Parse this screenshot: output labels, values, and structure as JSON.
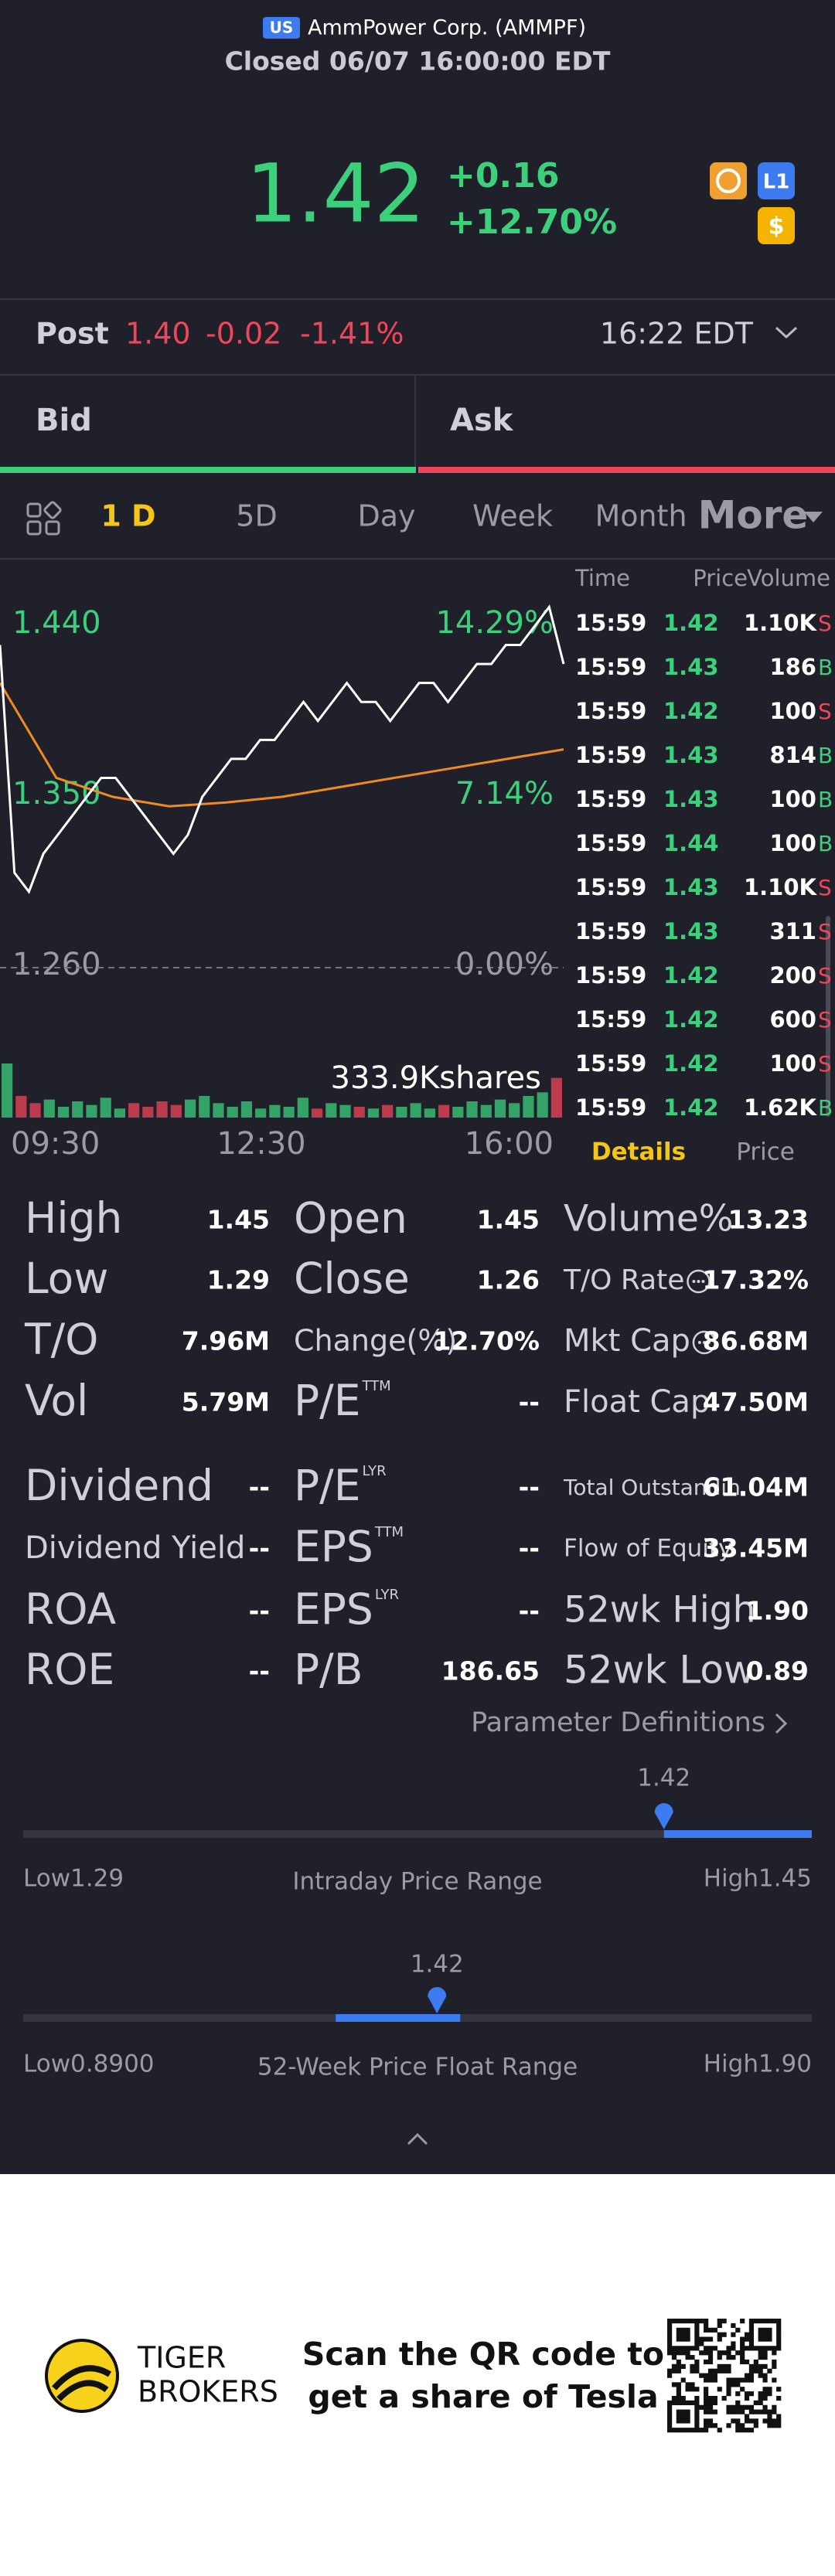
{
  "header": {
    "badge": "US",
    "name": "AmmPower Corp. (AMMPF)",
    "status": "Closed 06/07 16:00:00 EDT"
  },
  "quote": {
    "price": "1.42",
    "change": "+0.16",
    "change_pct": "+12.70%",
    "badges": [
      "L1",
      "$"
    ]
  },
  "post": {
    "label": "Post",
    "price": "1.40",
    "change": "-0.02",
    "change_pct": "-1.41%",
    "time": "16:22 EDT"
  },
  "orderbook": {
    "bid": "Bid",
    "ask": "Ask"
  },
  "tabs": {
    "items": [
      "1 D",
      "5D",
      "Day",
      "Week",
      "Month",
      "More"
    ],
    "active": 0
  },
  "chart": {
    "ylim": [
      1.26,
      1.44
    ],
    "yticks": [
      {
        "value": 1.44,
        "label": "1.440"
      },
      {
        "value": 1.35,
        "label": "1.350"
      },
      {
        "value": 1.26,
        "label": "1.260"
      }
    ],
    "y2lim": [
      0,
      14.29
    ],
    "y2ticks": [
      {
        "value": 14.29,
        "label": "14.29%"
      },
      {
        "value": 7.14,
        "label": "7.14%"
      },
      {
        "value": 0,
        "label": "0.00%"
      }
    ],
    "xlabels": [
      "09:30",
      "12:30",
      "16:00"
    ],
    "price": [
      1.43,
      1.31,
      1.3,
      1.32,
      1.33,
      1.34,
      1.35,
      1.36,
      1.36,
      1.35,
      1.34,
      1.33,
      1.32,
      1.33,
      1.35,
      1.36,
      1.37,
      1.37,
      1.38,
      1.38,
      1.39,
      1.4,
      1.39,
      1.4,
      1.41,
      1.4,
      1.4,
      1.39,
      1.4,
      1.41,
      1.41,
      1.4,
      1.41,
      1.42,
      1.42,
      1.43,
      1.43,
      1.44,
      1.45,
      1.42
    ],
    "average": [
      1.41,
      1.36,
      1.35,
      1.345,
      1.347,
      1.35,
      1.355,
      1.36,
      1.365,
      1.37,
      1.375
    ],
    "volume": [
      30,
      12,
      8,
      10,
      6,
      9,
      7,
      11,
      5,
      8,
      6,
      9,
      7,
      10,
      12,
      8,
      6,
      9,
      5,
      7,
      6,
      11,
      5,
      8,
      7,
      6,
      5,
      7,
      6,
      8,
      5,
      7,
      6,
      9,
      7,
      10,
      8,
      12,
      14,
      22
    ],
    "volume_label": "333.9Kshares"
  },
  "trades": {
    "headers": [
      "Time",
      "Price",
      "Volume"
    ],
    "rows": [
      [
        "15:59",
        "1.42",
        "1.10K",
        "S"
      ],
      [
        "15:59",
        "1.43",
        "186",
        "B"
      ],
      [
        "15:59",
        "1.42",
        "100",
        "S"
      ],
      [
        "15:59",
        "1.43",
        "814",
        "B"
      ],
      [
        "15:59",
        "1.43",
        "100",
        "B"
      ],
      [
        "15:59",
        "1.44",
        "100",
        "B"
      ],
      [
        "15:59",
        "1.43",
        "1.10K",
        "S"
      ],
      [
        "15:59",
        "1.43",
        "311",
        "S"
      ],
      [
        "15:59",
        "1.42",
        "200",
        "S"
      ],
      [
        "15:59",
        "1.42",
        "600",
        "S"
      ],
      [
        "15:59",
        "1.42",
        "100",
        "S"
      ],
      [
        "15:59",
        "1.42",
        "1.62K",
        "B"
      ]
    ]
  },
  "panel_tabs": [
    "Details",
    "Price"
  ],
  "stats": {
    "rows": [
      [
        {
          "label": "High",
          "value": "1.45"
        },
        {
          "label": "Open",
          "value": "1.45"
        },
        {
          "label": "Volume%",
          "value": "13.23"
        }
      ],
      [
        {
          "label": "Low",
          "value": "1.29"
        },
        {
          "label": "Close",
          "value": "1.26"
        },
        {
          "label": "T/O Rate",
          "value": "17.32%"
        }
      ],
      [
        {
          "label": "T/O",
          "value": "7.96M"
        },
        {
          "label": "Change(%)",
          "value": "12.70%"
        },
        {
          "label": "Mkt Cap",
          "value": "86.68M"
        }
      ],
      [
        {
          "label": "Vol",
          "value": "5.79M"
        },
        {
          "label": "P/E",
          "sup": "TTM",
          "value": "--"
        },
        {
          "label": "Float Cap",
          "value": "47.50M"
        }
      ],
      [
        {
          "label": "Dividend",
          "value": "--"
        },
        {
          "label": "P/E",
          "sup": "LYR",
          "value": "--"
        },
        {
          "label": "Total Outstandin",
          "value": "61.04M"
        }
      ],
      [
        {
          "label": "Dividend Yield",
          "value": "--"
        },
        {
          "label": "EPS",
          "sup": "TTM",
          "value": "--"
        },
        {
          "label": "Flow of Equity",
          "value": "33.45M"
        }
      ],
      [
        {
          "label": "ROA",
          "value": "--"
        },
        {
          "label": "EPS",
          "sup": "LYR",
          "value": "--"
        },
        {
          "label": "52wk High",
          "value": "1.90"
        }
      ],
      [
        {
          "label": "ROE",
          "value": "--"
        },
        {
          "label": "P/B",
          "value": "186.65"
        },
        {
          "label": "52wk Low",
          "value": "0.89"
        }
      ]
    ]
  },
  "parameter_definitions": "Parameter Definitions",
  "ranges": [
    {
      "title": "Intraday Price Range",
      "current": {
        "value": 1.42,
        "label": "1.42"
      },
      "low": {
        "value": 1.29,
        "label": "Low1.29"
      },
      "high": {
        "value": 1.45,
        "label": "High1.45"
      }
    },
    {
      "title": "52-Week Price Float Range",
      "current": {
        "value": 1.42,
        "label": "1.42"
      },
      "low": {
        "value": 0.89,
        "label": "Low0.8900"
      },
      "high": {
        "value": 1.9,
        "label": "High1.90"
      }
    }
  ],
  "footer": {
    "brand": [
      "TIGER",
      "BROKERS"
    ],
    "promo": [
      "Scan the QR code to",
      "get a share of Tesla"
    ]
  }
}
